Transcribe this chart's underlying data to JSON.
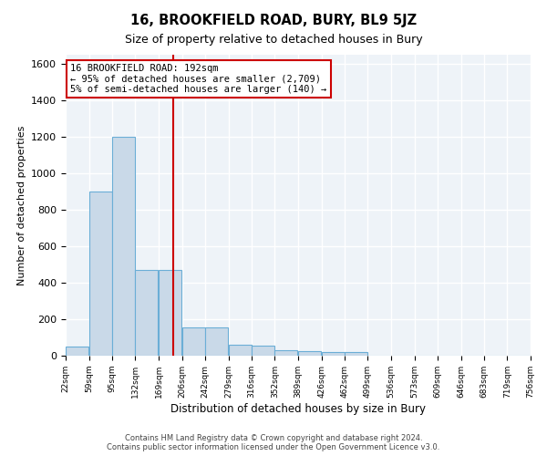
{
  "title": "16, BROOKFIELD ROAD, BURY, BL9 5JZ",
  "subtitle": "Size of property relative to detached houses in Bury",
  "xlabel": "Distribution of detached houses by size in Bury",
  "ylabel": "Number of detached properties",
  "bar_color": "#c9d9e8",
  "bar_edge_color": "#6baed6",
  "background_color": "#eef3f8",
  "grid_color": "#ffffff",
  "vline_x": 192,
  "vline_color": "#cc0000",
  "annotation_lines": [
    "16 BROOKFIELD ROAD: 192sqm",
    "← 95% of detached houses are smaller (2,709)",
    "5% of semi-detached houses are larger (140) →"
  ],
  "annotation_box_color": "#ffffff",
  "annotation_box_edge": "#cc0000",
  "bins": [
    22,
    59,
    95,
    132,
    169,
    206,
    242,
    279,
    316,
    352,
    389,
    426,
    462,
    499,
    536,
    573,
    609,
    646,
    683,
    719,
    756
  ],
  "counts": [
    50,
    900,
    1200,
    470,
    470,
    155,
    155,
    60,
    55,
    30,
    25,
    20,
    20,
    0,
    0,
    0,
    0,
    0,
    0,
    0
  ],
  "ylim": [
    0,
    1650
  ],
  "yticks": [
    0,
    200,
    400,
    600,
    800,
    1000,
    1200,
    1400,
    1600
  ],
  "footer_lines": [
    "Contains HM Land Registry data © Crown copyright and database right 2024.",
    "Contains public sector information licensed under the Open Government Licence v3.0."
  ]
}
